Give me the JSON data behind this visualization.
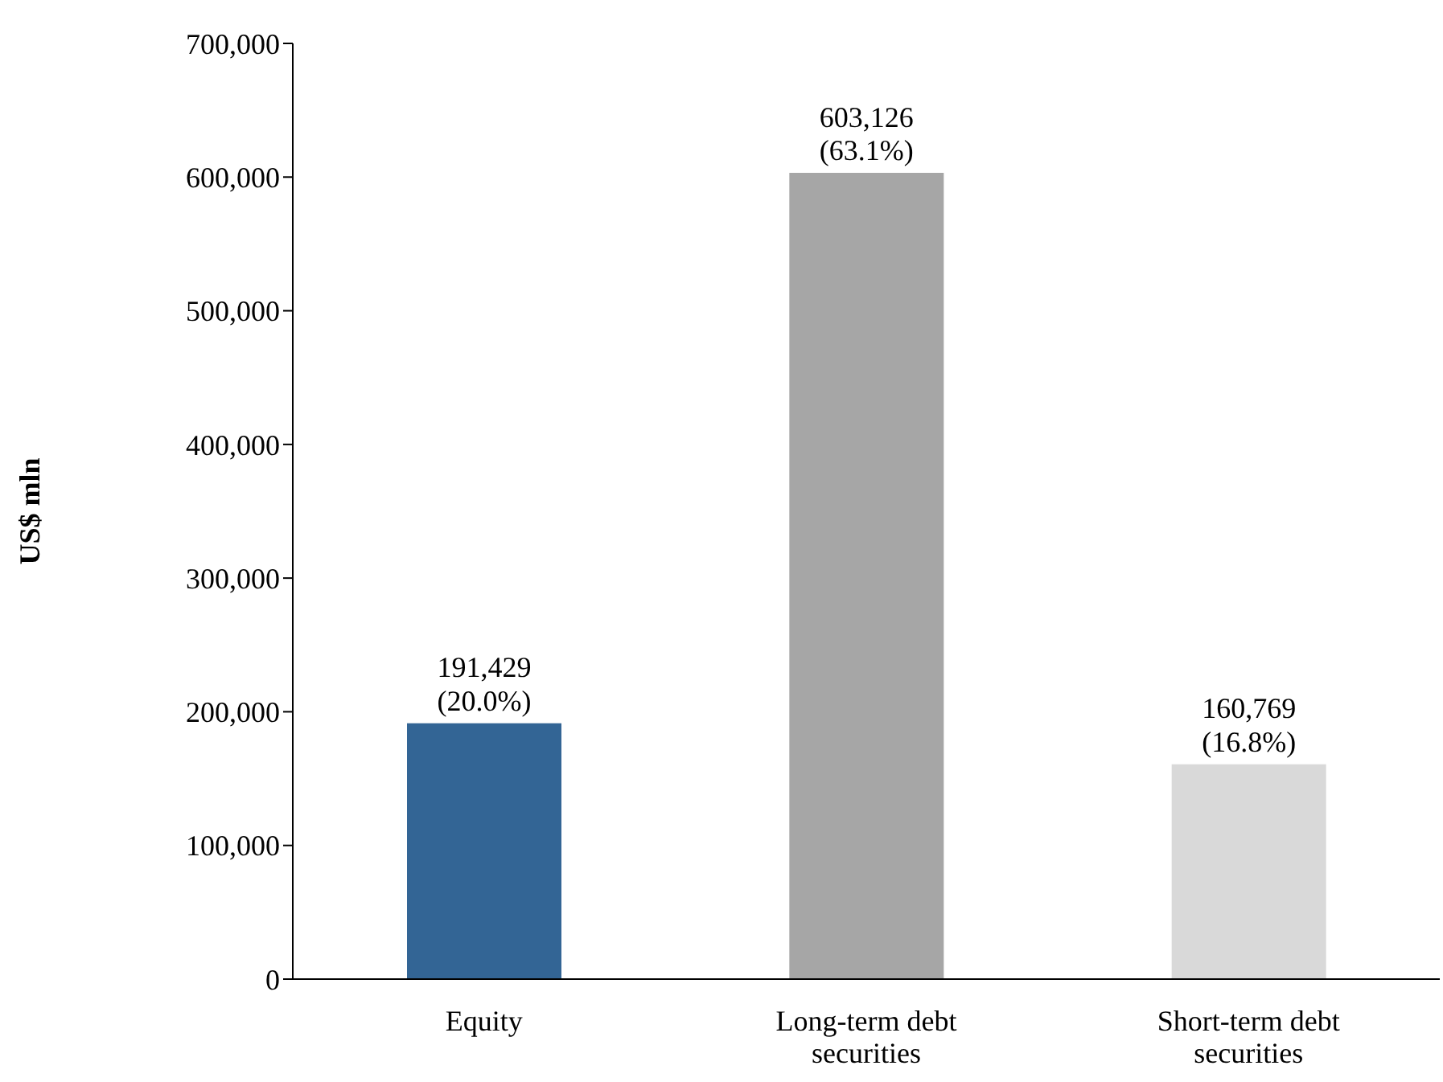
{
  "chart_data": {
    "type": "bar",
    "ylabel": "US$ mln",
    "categories": [
      "Equity",
      "Long-term debt securities",
      "Short-term debt securities"
    ],
    "values": [
      191429,
      603126,
      160769
    ],
    "colors": [
      "#336595",
      "#a6a6a6",
      "#d9d9d9"
    ],
    "value_labels": [
      "191,429\n(20.0%)",
      "603,126\n(63.1%)",
      "160,769\n(16.8%)"
    ],
    "ylim": [
      0,
      700000
    ],
    "yticks": [
      0,
      {
        "value": 100000,
        "label": "100,000"
      },
      {
        "value": 200000,
        "label": "200,000"
      },
      {
        "value": 300000,
        "label": "300,000"
      },
      {
        "value": 400000,
        "label": "400,000"
      },
      {
        "value": 500000,
        "label": "500,000"
      },
      {
        "value": 600000,
        "label": "600,000"
      },
      {
        "value": 700000,
        "label": "700,000"
      }
    ],
    "grid": false,
    "legend": false
  }
}
